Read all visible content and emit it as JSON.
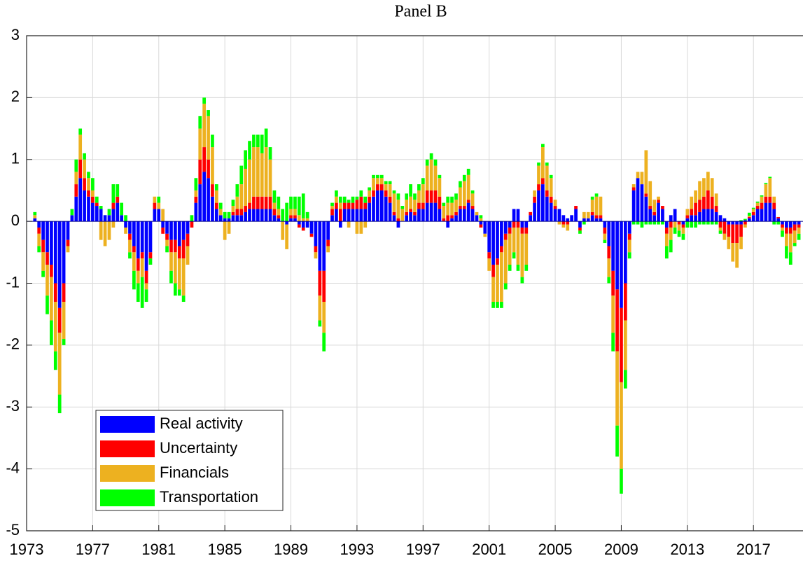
{
  "chart_data": {
    "type": "bar",
    "stacked": true,
    "title": "Panel B",
    "x": [
      1973.5,
      1973.75,
      1974,
      1974.25,
      1974.5,
      1974.75,
      1975,
      1975.25,
      1975.5,
      1975.75,
      1976,
      1976.25,
      1976.5,
      1976.75,
      1977,
      1977.25,
      1977.5,
      1977.75,
      1978,
      1978.25,
      1978.5,
      1978.75,
      1979,
      1979.25,
      1979.5,
      1979.75,
      1980,
      1980.25,
      1980.5,
      1980.75,
      1981,
      1981.25,
      1981.5,
      1981.75,
      1982,
      1982.25,
      1982.5,
      1982.75,
      1983,
      1983.25,
      1983.5,
      1983.75,
      1984,
      1984.25,
      1984.5,
      1984.75,
      1985,
      1985.25,
      1985.5,
      1985.75,
      1986,
      1986.25,
      1986.5,
      1986.75,
      1987,
      1987.25,
      1987.5,
      1987.75,
      1988,
      1988.25,
      1988.5,
      1988.75,
      1989,
      1989.25,
      1989.5,
      1989.75,
      1990,
      1990.25,
      1990.5,
      1990.75,
      1991,
      1991.25,
      1991.5,
      1991.75,
      1992,
      1992.25,
      1992.5,
      1992.75,
      1993,
      1993.25,
      1993.5,
      1993.75,
      1994,
      1994.25,
      1994.5,
      1994.75,
      1995,
      1995.25,
      1995.5,
      1995.75,
      1996,
      1996.25,
      1996.5,
      1996.75,
      1997,
      1997.25,
      1997.5,
      1997.75,
      1998,
      1998.25,
      1998.5,
      1998.75,
      1999,
      1999.25,
      1999.5,
      1999.75,
      2000,
      2000.25,
      2000.5,
      2000.75,
      2001,
      2001.25,
      2001.5,
      2001.75,
      2002,
      2002.25,
      2002.5,
      2002.75,
      2003,
      2003.25,
      2003.5,
      2003.75,
      2004,
      2004.25,
      2004.5,
      2004.75,
      2005,
      2005.25,
      2005.5,
      2005.75,
      2006,
      2006.25,
      2006.5,
      2006.75,
      2007,
      2007.25,
      2007.5,
      2007.75,
      2008,
      2008.25,
      2008.5,
      2008.75,
      2009,
      2009.25,
      2009.5,
      2009.75,
      2010,
      2010.25,
      2010.5,
      2010.75,
      2011,
      2011.25,
      2011.5,
      2011.75,
      2012,
      2012.25,
      2012.5,
      2012.75,
      2013,
      2013.25,
      2013.5,
      2013.75,
      2014,
      2014.25,
      2014.5,
      2014.75,
      2015,
      2015.25,
      2015.5,
      2015.75,
      2016,
      2016.25,
      2016.5,
      2016.75,
      2017,
      2017.25,
      2017.5,
      2017.75,
      2018,
      2018.25,
      2018.5,
      2018.75,
      2019,
      2019.25,
      2019.5,
      2019.75
    ],
    "series": [
      {
        "name": "Real activity",
        "color": "#0000ff",
        "values": [
          0.05,
          -0.1,
          -0.3,
          -0.5,
          -0.7,
          -1.0,
          -1.4,
          -1.0,
          -0.3,
          0.1,
          0.4,
          0.7,
          0.5,
          0.4,
          0.3,
          0.25,
          0.2,
          0.1,
          0.1,
          0.2,
          0.3,
          0.1,
          -0.1,
          -0.2,
          -0.4,
          -0.6,
          -0.5,
          -0.8,
          -0.5,
          0.2,
          0.2,
          -0.1,
          -0.2,
          -0.3,
          -0.3,
          -0.4,
          -0.3,
          -0.2,
          0,
          0.3,
          0.6,
          0.8,
          0.7,
          0.4,
          0.2,
          0.1,
          0.05,
          0.05,
          0.1,
          0.1,
          0.1,
          0.15,
          0.2,
          0.2,
          0.2,
          0.2,
          0.2,
          0.2,
          0.1,
          0.05,
          0,
          -0.05,
          0.05,
          0.05,
          -0.05,
          -0.1,
          -0.1,
          -0.2,
          -0.4,
          -0.8,
          -0.8,
          -0.3,
          0.1,
          0.2,
          -0.1,
          0.2,
          0.2,
          0.2,
          0.2,
          0.2,
          0.2,
          0.3,
          0.4,
          0.5,
          0.5,
          0.4,
          0.3,
          0.1,
          -0.1,
          0,
          0.1,
          0.15,
          0.1,
          0.2,
          0.2,
          0.3,
          0.3,
          0.3,
          0.2,
          0,
          -0.1,
          0.05,
          0.1,
          0.2,
          0.2,
          0.3,
          0.2,
          0.1,
          -0.05,
          -0.2,
          -0.5,
          -0.7,
          -0.6,
          -0.4,
          -0.2,
          -0.1,
          0.2,
          0.2,
          -0.1,
          -0.1,
          0.1,
          0.3,
          0.5,
          0.6,
          0.4,
          0.3,
          0.2,
          0.2,
          0.1,
          0.05,
          0.1,
          0.2,
          -0.1,
          0.05,
          0.05,
          0.1,
          0.05,
          0.05,
          -0.1,
          -0.4,
          -0.8,
          -1.1,
          -1.4,
          -1.0,
          -0.2,
          0.5,
          0.7,
          0.6,
          0.4,
          0.2,
          0.1,
          0.3,
          0.2,
          -0.1,
          0.1,
          0.2,
          0,
          -0.05,
          0.05,
          0.1,
          0.1,
          0.15,
          0.2,
          0.2,
          0.2,
          0.15,
          0.1,
          0.05,
          -0.05,
          -0.05,
          -0.05,
          -0.05,
          0.02,
          0.05,
          0.1,
          0.2,
          0.2,
          0.3,
          0.3,
          0.2,
          0.05,
          -0.05,
          -0.1,
          -0.1,
          -0.05,
          -0.05
        ]
      },
      {
        "name": "Uncertainty",
        "color": "#ff0000",
        "values": [
          0,
          -0.1,
          -0.2,
          -0.2,
          -0.2,
          -0.3,
          -0.4,
          -0.3,
          -0.1,
          0,
          0.2,
          0.3,
          0.2,
          0.1,
          0.1,
          0.05,
          0,
          0,
          0,
          0.1,
          0.1,
          0,
          0,
          -0.1,
          -0.1,
          -0.2,
          -0.1,
          -0.2,
          -0.1,
          0.1,
          0,
          -0.1,
          -0.1,
          -0.2,
          -0.2,
          -0.2,
          -0.3,
          -0.2,
          -0.1,
          0.1,
          0.4,
          0.4,
          0.3,
          0.2,
          0.1,
          0,
          0,
          0,
          0.05,
          0.1,
          0.1,
          0.1,
          0.1,
          0.2,
          0.2,
          0.2,
          0.2,
          0.2,
          0.1,
          0.05,
          0,
          0,
          0.05,
          0.05,
          -0.05,
          -0.05,
          0,
          -0.05,
          -0.1,
          -0.4,
          -0.5,
          -0.1,
          0.1,
          0.1,
          0.2,
          0.1,
          0.1,
          0.1,
          0.15,
          0.2,
          0.1,
          0.1,
          0.1,
          0.1,
          0.1,
          0.1,
          0.1,
          0.05,
          0.05,
          0,
          0.05,
          0.05,
          0.05,
          0.1,
          0.1,
          0.2,
          0.2,
          0.2,
          0.2,
          0.05,
          0.1,
          0.05,
          0.05,
          0.05,
          0.05,
          0.05,
          0.05,
          0,
          -0.05,
          0,
          -0.1,
          -0.2,
          -0.1,
          -0.1,
          -0.1,
          -0.1,
          -0.1,
          -0.1,
          -0.1,
          -0.1,
          0.05,
          0.1,
          0.1,
          0.1,
          0.1,
          0.1,
          0.05,
          0,
          -0.05,
          -0.05,
          0,
          0.05,
          -0.05,
          0,
          0,
          0.05,
          0.05,
          0.05,
          -0.1,
          -0.2,
          -0.4,
          -1.0,
          -1.2,
          -0.6,
          -0.1,
          0.05,
          0,
          0,
          0.05,
          0.05,
          0.05,
          0.05,
          0.05,
          -0.1,
          -0.1,
          0,
          -0.05,
          -0.05,
          0.05,
          0.1,
          0.2,
          0.2,
          0.2,
          0.3,
          0.2,
          0.1,
          -0.1,
          -0.2,
          -0.2,
          -0.3,
          -0.3,
          -0.2,
          -0.05,
          0.02,
          0.05,
          0.05,
          0.1,
          0.1,
          0.1,
          0.1,
          0.02,
          -0.05,
          -0.1,
          -0.1,
          -0.1,
          -0.05
        ]
      },
      {
        "name": "Financials",
        "color": "#edb120",
        "values": [
          0.05,
          -0.2,
          -0.3,
          -0.5,
          -0.7,
          -0.8,
          -1.0,
          -0.6,
          -0.1,
          0,
          0.2,
          0.4,
          0.3,
          0.2,
          0.1,
          0,
          -0.3,
          -0.4,
          -0.3,
          -0.1,
          0,
          0,
          -0.1,
          -0.2,
          -0.3,
          -0.2,
          -0.3,
          -0.1,
          0,
          0.1,
          0.1,
          0.2,
          -0.1,
          -0.3,
          -0.5,
          -0.5,
          -0.6,
          -0.3,
          0,
          0.1,
          0.5,
          0.7,
          0.7,
          0.6,
          0.2,
          0.1,
          -0.3,
          -0.2,
          0.1,
          0.2,
          0.4,
          0.6,
          0.7,
          0.8,
          0.8,
          0.7,
          0.8,
          0.6,
          0.1,
          0.1,
          -0.3,
          -0.4,
          0.1,
          0.1,
          0.1,
          0.05,
          0.05,
          0,
          -0.1,
          -0.4,
          -0.5,
          -0.1,
          0.05,
          0.1,
          0.1,
          0,
          -0.1,
          0,
          -0.2,
          -0.2,
          -0.1,
          0.1,
          0.2,
          0.1,
          0.1,
          0.1,
          0.2,
          0.3,
          0.3,
          0.2,
          0.2,
          0.2,
          0.2,
          0.2,
          0.3,
          0.4,
          0.5,
          0.4,
          0.3,
          0.2,
          0.2,
          0.2,
          0.2,
          0.3,
          0.4,
          0.4,
          0.2,
          0.05,
          0.05,
          -0.05,
          -0.2,
          -0.4,
          -0.6,
          -0.8,
          -0.7,
          -0.5,
          -0.4,
          -0.6,
          -0.7,
          -0.5,
          0,
          0.1,
          0.3,
          0.5,
          0.4,
          0.3,
          0.1,
          -0.05,
          -0.05,
          -0.1,
          0,
          0,
          0,
          0.1,
          0.1,
          0.2,
          0.3,
          0.3,
          -0.1,
          -0.3,
          -0.6,
          -1.2,
          -1.4,
          -0.8,
          -0.2,
          0.05,
          0.1,
          0.2,
          0.7,
          0.4,
          0.2,
          0.05,
          0,
          -0.2,
          -0.2,
          -0.1,
          -0.1,
          -0.1,
          0.1,
          0.2,
          0.2,
          0.3,
          0.3,
          0.3,
          0.3,
          0.2,
          -0.05,
          -0.1,
          -0.2,
          -0.3,
          -0.4,
          -0.2,
          -0.05,
          0.02,
          0.05,
          0.05,
          0.1,
          0.2,
          0.3,
          0.1,
          0,
          -0.05,
          -0.2,
          -0.3,
          -0.2,
          -0.1
        ]
      },
      {
        "name": "Transportation",
        "color": "#00ff00",
        "values": [
          0.05,
          -0.1,
          -0.1,
          -0.3,
          -0.4,
          -0.3,
          -0.3,
          -0.1,
          0,
          0.1,
          0.2,
          0.1,
          0.1,
          0.1,
          0.2,
          0.1,
          0.05,
          0,
          0.1,
          0.3,
          0.2,
          0.2,
          0.1,
          -0.1,
          -0.3,
          -0.3,
          -0.5,
          -0.2,
          -0.1,
          0,
          0.1,
          0,
          -0.1,
          -0.2,
          -0.2,
          -0.1,
          -0.1,
          0,
          0.1,
          0.2,
          0.2,
          0.1,
          0.1,
          0.2,
          0.1,
          0.1,
          0.1,
          0.1,
          0.1,
          0.2,
          0.3,
          0.3,
          0.3,
          0.2,
          0.2,
          0.3,
          0.3,
          0.2,
          0.2,
          0.2,
          0.2,
          0.3,
          0.2,
          0.2,
          0.3,
          0.4,
          0.1,
          0,
          0,
          -0.1,
          -0.3,
          0,
          0.05,
          0.1,
          0.1,
          0.1,
          0.05,
          0.1,
          0.05,
          0.1,
          0.1,
          0.05,
          0.05,
          0.05,
          0.05,
          0.05,
          0.05,
          0.05,
          0.1,
          0.05,
          0.1,
          0.2,
          0.1,
          0.1,
          0.1,
          0.1,
          0.1,
          0.1,
          0.05,
          0.05,
          0.1,
          0.1,
          0.1,
          0.1,
          0.1,
          0.1,
          0.05,
          0,
          0.05,
          0,
          0,
          -0.1,
          -0.1,
          -0.1,
          -0.1,
          -0.1,
          -0.1,
          -0.1,
          -0.1,
          -0.1,
          0,
          0,
          0.05,
          0.05,
          0.05,
          0.05,
          0,
          0,
          0,
          0,
          0,
          0,
          -0.05,
          -0.05,
          0,
          0.05,
          0.05,
          0,
          -0.05,
          -0.1,
          -0.3,
          -0.5,
          -0.4,
          -0.3,
          -0.1,
          -0.05,
          -0.05,
          -0.1,
          -0.05,
          -0.05,
          -0.05,
          -0.05,
          -0.05,
          -0.2,
          -0.2,
          -0.1,
          -0.1,
          -0.1,
          -0.1,
          -0.1,
          -0.1,
          -0.05,
          -0.05,
          -0.05,
          -0.05,
          -0.05,
          -0.05,
          0,
          0,
          0,
          0,
          0.02,
          0.02,
          0.05,
          0.02,
          0.02,
          0.02,
          0.02,
          0.02,
          -0.05,
          -0.05,
          -0.1,
          -0.2,
          -0.2,
          -0.05,
          -0.1
        ]
      }
    ],
    "xlim": [
      1973,
      2020
    ],
    "xticks": [
      1973,
      1977,
      1981,
      1985,
      1989,
      1993,
      1997,
      2001,
      2005,
      2009,
      2013,
      2017
    ],
    "ylim": [
      -5,
      3
    ],
    "yticks": [
      -5,
      -4,
      -3,
      -2,
      -1,
      0,
      1,
      2,
      3
    ],
    "grid": true,
    "legend": "lower left"
  }
}
